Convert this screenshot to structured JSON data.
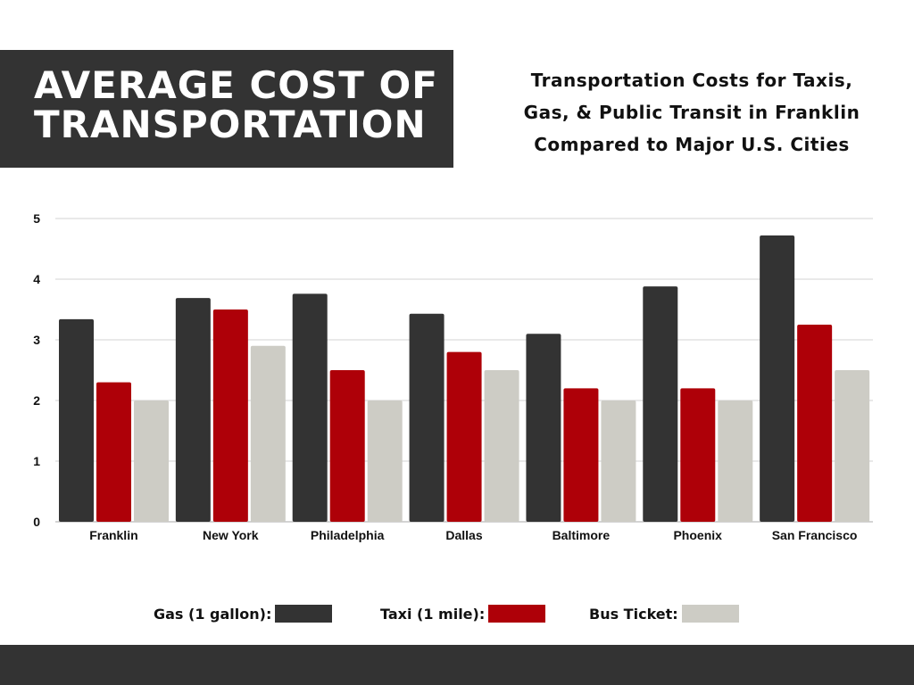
{
  "title": "AVERAGE COST OF TRANSPORTATION",
  "title_lines": [
    "AVERAGE COST OF",
    "TRANSPORTATION"
  ],
  "subtitle_lines": [
    "Transportation Costs for Taxis,",
    "Gas, & Public Transit in Franklin",
    "Compared to Major U.S. Cities"
  ],
  "chart_data": {
    "type": "bar",
    "title": "Transportation Costs for Taxis, Gas, & Public Transit in Franklin Compared to Major U.S. Cities",
    "xlabel": "",
    "ylabel": "",
    "ylim": [
      0,
      5
    ],
    "yticks": [
      "0",
      "1",
      "2",
      "3",
      "4",
      "5"
    ],
    "grid": true,
    "legend_position": "bottom",
    "categories": [
      "Franklin",
      "New York",
      "Philadelphia",
      "Dallas",
      "Baltimore",
      "Phoenix",
      "San Francisco"
    ],
    "series": [
      {
        "name": "Gas (1 gallon):",
        "color": "#333333",
        "values": [
          3.34,
          3.69,
          3.76,
          3.43,
          3.1,
          3.88,
          4.72
        ]
      },
      {
        "name": "Taxi (1 mile):",
        "color": "#ae0008",
        "values": [
          2.3,
          3.5,
          2.5,
          2.8,
          2.2,
          2.2,
          3.25
        ]
      },
      {
        "name": "Bus Ticket:",
        "color": "#cdccc5",
        "values": [
          2.0,
          2.9,
          2.0,
          2.5,
          2.0,
          2.0,
          2.5
        ]
      }
    ]
  }
}
